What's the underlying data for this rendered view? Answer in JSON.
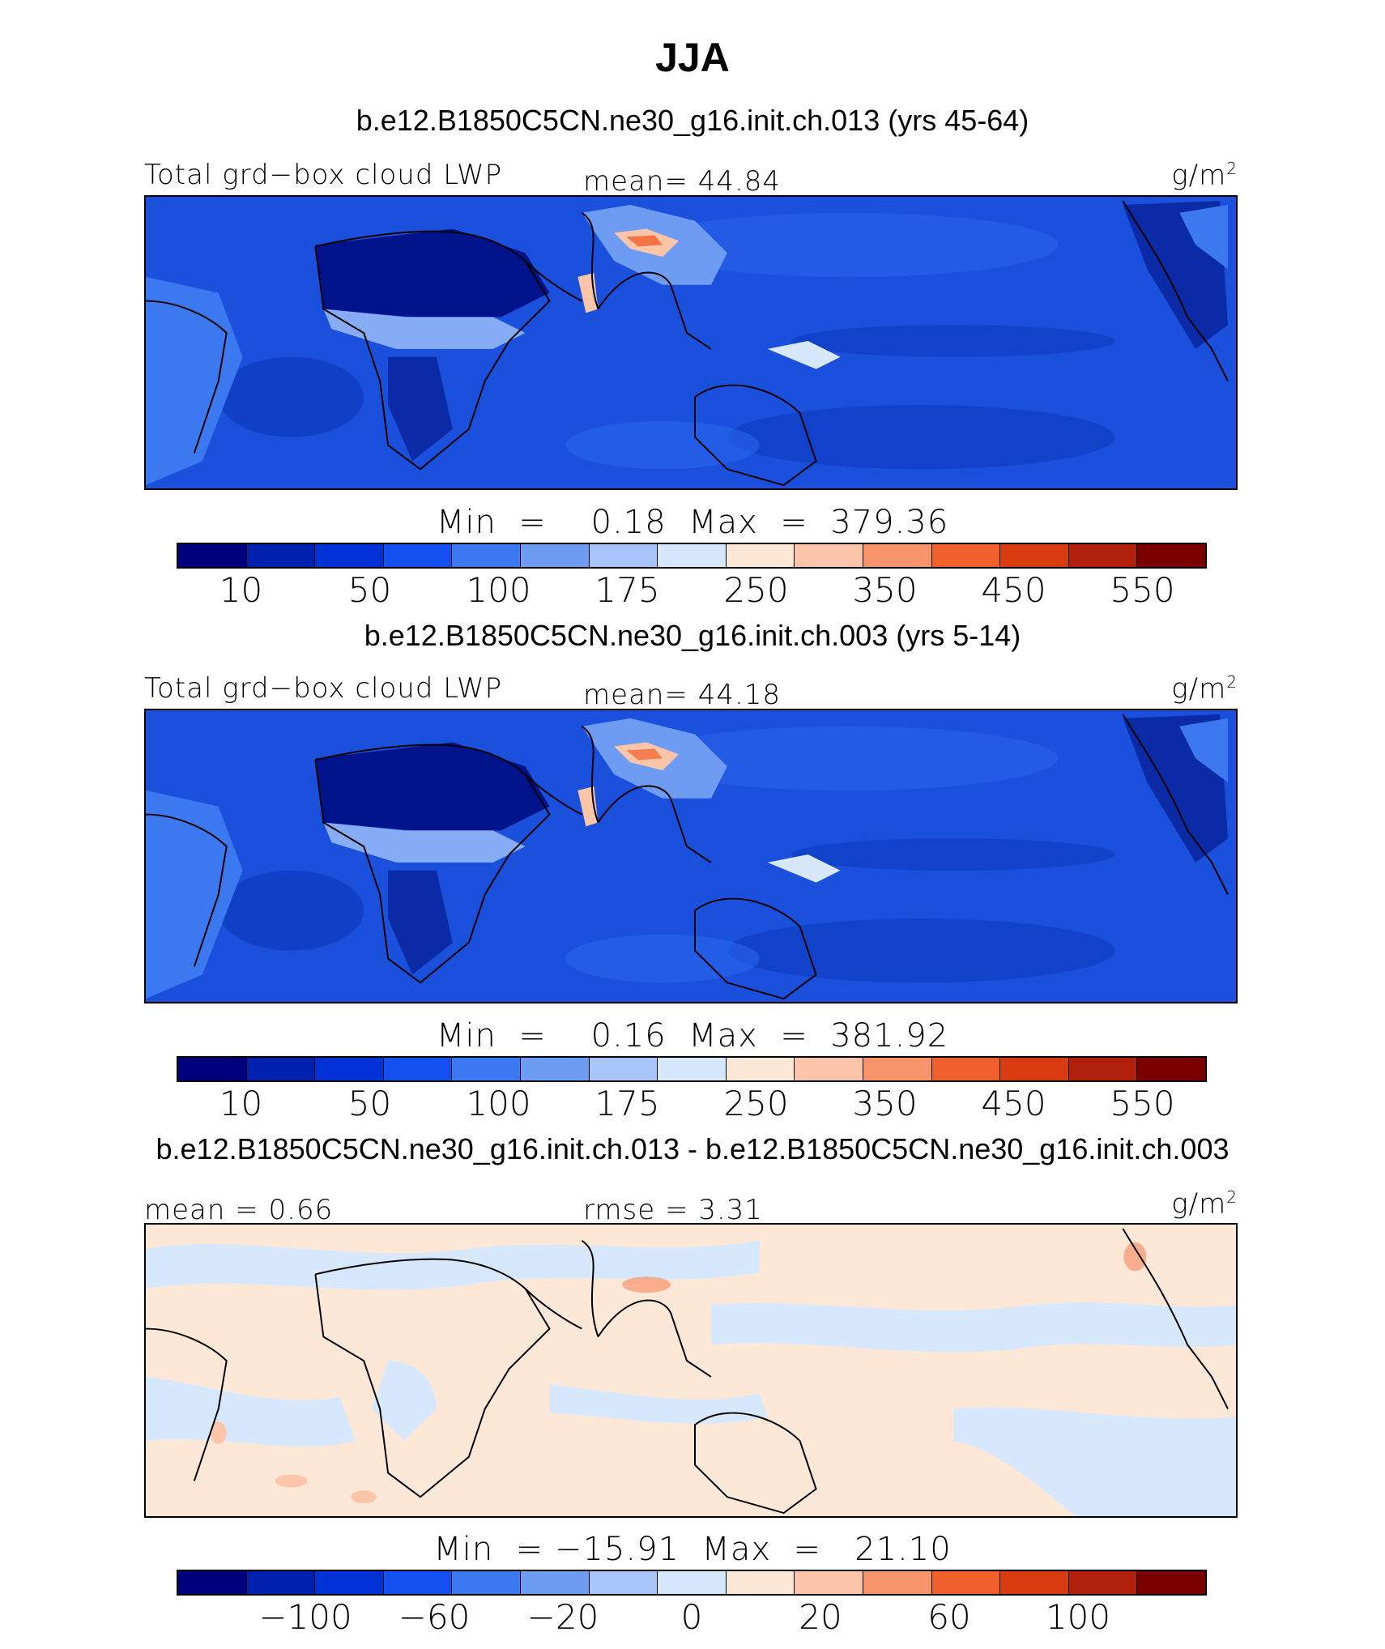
{
  "title": "JJA",
  "colors": {
    "scale": [
      "#00007f",
      "#0020b0",
      "#0032d8",
      "#1450f0",
      "#3c78f0",
      "#6e9cf2",
      "#a8c4f8",
      "#d8e8fc",
      "#fde8d8",
      "#fcc4a8",
      "#f8946c",
      "#f0602c",
      "#d83c10",
      "#b0200c",
      "#7a0000"
    ],
    "coast": "#000000"
  },
  "panels": [
    {
      "case_title": "b.e12.B1850C5CN.ne30_g16.init.ch.013 (yrs 45-64)",
      "left_label": "Total grd−box cloud LWP",
      "center_label": "mean=  44.84",
      "units": "g/m",
      "units_sup": "2",
      "minmax": "Min  =    0.18  Max  =  379.36",
      "cbar_ticks": [
        "10",
        "50",
        "100",
        "175",
        "250",
        "350",
        "450",
        "550"
      ]
    },
    {
      "case_title": "b.e12.B1850C5CN.ne30_g16.init.ch.003 (yrs 5-14)",
      "left_label": "Total grd−box cloud LWP",
      "center_label": "mean=  44.18",
      "units": "g/m",
      "units_sup": "2",
      "minmax": "Min  =    0.16  Max  =  381.92",
      "cbar_ticks": [
        "10",
        "50",
        "100",
        "175",
        "250",
        "350",
        "450",
        "550"
      ]
    },
    {
      "case_title": "b.e12.B1850C5CN.ne30_g16.init.ch.013 - b.e12.B1850C5CN.ne30_g16.init.ch.003",
      "left_label": "mean  =    0.66",
      "center_label": "rmse  =    3.31",
      "units": "g/m",
      "units_sup": "2",
      "minmax": "Min  = −15.91  Max  =   21.10",
      "cbar_ticks": [
        "−100",
        "−60",
        "−20",
        "0",
        "20",
        "60",
        "100"
      ]
    }
  ]
}
